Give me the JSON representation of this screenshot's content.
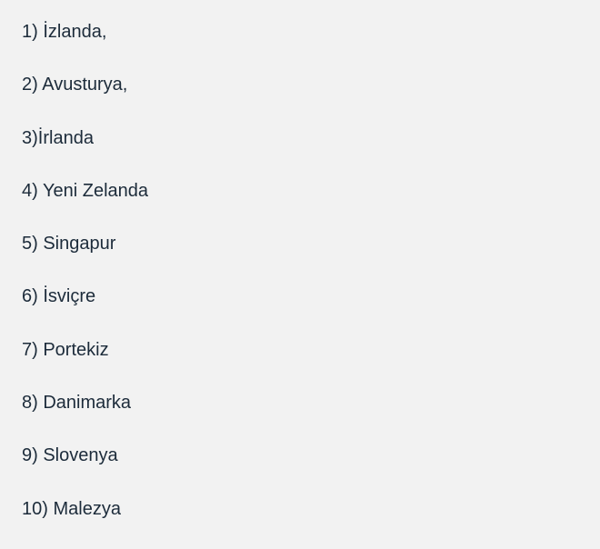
{
  "items": [
    "1) İzlanda,",
    "2) Avusturya,",
    "3)İrlanda",
    "4) Yeni Zelanda",
    "5) Singapur",
    "6) İsviçre",
    "7) Portekiz",
    "8) Danimarka",
    "9) Slovenya",
    "10) Malezya"
  ]
}
